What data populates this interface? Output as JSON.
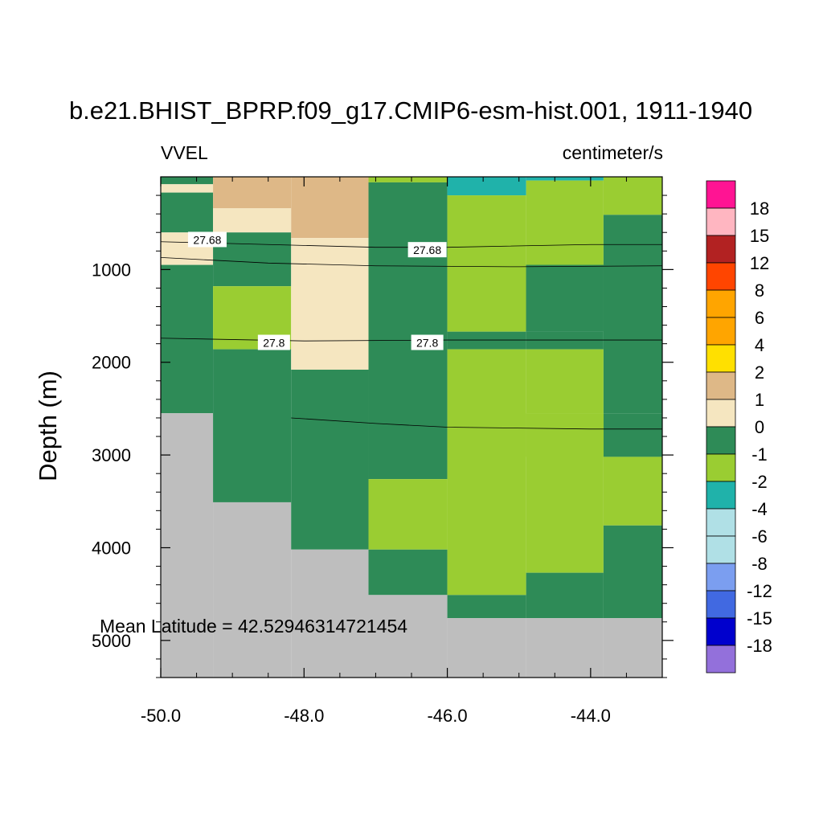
{
  "chart_data": {
    "type": "heatmap",
    "title": "b.e21.BHIST_BPRP.f09_g17.CMIP6-esm-hist.001, 1911-1940",
    "left_subtitle": "VVEL",
    "right_subtitle": "centimeter/s",
    "ylabel": "Depth (m)",
    "xlim": [
      -50.0,
      -43.0
    ],
    "ylim": [
      5400,
      0
    ],
    "xticks": [
      -50.0,
      -48.0,
      -46.0,
      -44.0
    ],
    "xtick_labels": [
      "-50.0",
      "-48.0",
      "-46.0",
      "-44.0"
    ],
    "yticks": [
      1000,
      2000,
      3000,
      4000,
      5000
    ],
    "ytick_labels": [
      "1000",
      "2000",
      "3000",
      "4000",
      "5000"
    ],
    "annotation": "Mean Latitude = 42.52946314721454",
    "colorbar": {
      "labels": [
        "18",
        "15",
        "12",
        "8",
        "6",
        "4",
        "2",
        "1",
        "0",
        "-1",
        "-2",
        "-4",
        "-6",
        "-8",
        "-12",
        "-15",
        "-18"
      ],
      "colors": [
        "#FF1493",
        "#FFB6C1",
        "#B22222",
        "#FF4500",
        "#FFA500",
        "#FFA500",
        "#FFE000",
        "#DEB887",
        "#F5E6C0",
        "#2E8B57",
        "#9ACD32",
        "#20B2AA",
        "#B0E0E6",
        "#B0E0E6",
        "#7B9EF0",
        "#4169E1",
        "#0000CD",
        "#9370DB"
      ]
    },
    "land_color": "#BEBEBE",
    "columns_lon": [
      [
        -50.0,
        -49.27
      ],
      [
        -49.27,
        -48.18
      ],
      [
        -48.18,
        -47.1
      ],
      [
        -47.1,
        -46.0
      ],
      [
        -46.0,
        -44.9
      ],
      [
        -44.9,
        -43.82
      ],
      [
        -43.82,
        -43.0
      ]
    ],
    "cells": [
      {
        "col": 0,
        "d0": 0,
        "d1": 80,
        "cat": "0"
      },
      {
        "col": 0,
        "d0": 80,
        "d1": 170,
        "cat": "1"
      },
      {
        "col": 0,
        "d0": 170,
        "d1": 600,
        "cat": "0"
      },
      {
        "col": 0,
        "d0": 600,
        "d1": 950,
        "cat": "1"
      },
      {
        "col": 0,
        "d0": 950,
        "d1": 2550,
        "cat": "0"
      },
      {
        "col": 0,
        "d0": 2550,
        "d1": 5400,
        "cat": "land"
      },
      {
        "col": 1,
        "d0": 0,
        "d1": 340,
        "cat": "2"
      },
      {
        "col": 1,
        "d0": 340,
        "d1": 600,
        "cat": "1"
      },
      {
        "col": 1,
        "d0": 600,
        "d1": 1180,
        "cat": "0"
      },
      {
        "col": 1,
        "d0": 1180,
        "d1": 1860,
        "cat": "-1"
      },
      {
        "col": 1,
        "d0": 1860,
        "d1": 3510,
        "cat": "0"
      },
      {
        "col": 1,
        "d0": 3510,
        "d1": 5400,
        "cat": "land"
      },
      {
        "col": 2,
        "d0": 0,
        "d1": 660,
        "cat": "2"
      },
      {
        "col": 2,
        "d0": 660,
        "d1": 2080,
        "cat": "1"
      },
      {
        "col": 2,
        "d0": 2080,
        "d1": 4020,
        "cat": "0"
      },
      {
        "col": 2,
        "d0": 4020,
        "d1": 5400,
        "cat": "land"
      },
      {
        "col": 3,
        "d0": 0,
        "d1": 60,
        "cat": "-1"
      },
      {
        "col": 3,
        "d0": 60,
        "d1": 3260,
        "cat": "0"
      },
      {
        "col": 3,
        "d0": 3260,
        "d1": 4020,
        "cat": "-1"
      },
      {
        "col": 3,
        "d0": 4020,
        "d1": 4510,
        "cat": "0"
      },
      {
        "col": 3,
        "d0": 4510,
        "d1": 5400,
        "cat": "land"
      },
      {
        "col": 4,
        "d0": 0,
        "d1": 200,
        "cat": "-2"
      },
      {
        "col": 4,
        "d0": 200,
        "d1": 1670,
        "cat": "-1"
      },
      {
        "col": 4,
        "d0": 1670,
        "d1": 1860,
        "cat": "0"
      },
      {
        "col": 4,
        "d0": 1860,
        "d1": 4510,
        "cat": "-1"
      },
      {
        "col": 4,
        "d0": 4510,
        "d1": 4760,
        "cat": "0"
      },
      {
        "col": 4,
        "d0": 4760,
        "d1": 5400,
        "cat": "land"
      },
      {
        "col": 5,
        "d0": 0,
        "d1": 40,
        "cat": "-2"
      },
      {
        "col": 5,
        "d0": 40,
        "d1": 950,
        "cat": "-1"
      },
      {
        "col": 5,
        "d0": 950,
        "d1": 1670,
        "cat": "0"
      },
      {
        "col": 5,
        "d0": 1670,
        "d1": 1860,
        "cat": "0"
      },
      {
        "col": 5,
        "d0": 1860,
        "d1": 2550,
        "cat": "-1"
      },
      {
        "col": 5,
        "d0": 2550,
        "d1": 4270,
        "cat": "-1"
      },
      {
        "col": 5,
        "d0": 4270,
        "d1": 4760,
        "cat": "0"
      },
      {
        "col": 5,
        "d0": 4760,
        "d1": 5400,
        "cat": "land"
      },
      {
        "col": 6,
        "d0": 0,
        "d1": 410,
        "cat": "-1"
      },
      {
        "col": 6,
        "d0": 410,
        "d1": 2550,
        "cat": "0"
      },
      {
        "col": 6,
        "d0": 2550,
        "d1": 3020,
        "cat": "0"
      },
      {
        "col": 6,
        "d0": 3020,
        "d1": 3760,
        "cat": "-1"
      },
      {
        "col": 6,
        "d0": 3760,
        "d1": 4760,
        "cat": "0"
      },
      {
        "col": 6,
        "d0": 4760,
        "d1": 5400,
        "cat": "land"
      }
    ],
    "extra_cells": [
      {
        "lon0": -44.9,
        "lon1": -43.82,
        "d0": 2550,
        "d1": 3020,
        "cat": "-1"
      },
      {
        "lon0": -44.9,
        "lon1": -43.82,
        "d0": 950,
        "d1": 1670,
        "cat": "0"
      }
    ],
    "contours": [
      {
        "label": "27.68",
        "points": [
          [
            -50.0,
            700
          ],
          [
            -48.5,
            730
          ],
          [
            -47.0,
            760
          ],
          [
            -46.0,
            760
          ],
          [
            -44.0,
            730
          ],
          [
            -43.0,
            730
          ]
        ],
        "label_at": [
          [
            -49.35,
            680
          ],
          [
            -46.28,
            790
          ]
        ]
      },
      {
        "label": "",
        "points": [
          [
            -50.0,
            870
          ],
          [
            -48.5,
            930
          ],
          [
            -47.0,
            960
          ],
          [
            -45.0,
            970
          ],
          [
            -43.0,
            960
          ]
        ],
        "label_at": []
      },
      {
        "label": "27.8",
        "points": [
          [
            -50.0,
            1740
          ],
          [
            -48.0,
            1770
          ],
          [
            -46.0,
            1760
          ],
          [
            -44.0,
            1760
          ],
          [
            -43.0,
            1760
          ]
        ],
        "label_at": [
          [
            -48.42,
            1790
          ],
          [
            -46.28,
            1790
          ]
        ]
      },
      {
        "label": "",
        "points": [
          [
            -48.18,
            2600
          ],
          [
            -47.0,
            2660
          ],
          [
            -46.0,
            2700
          ],
          [
            -44.0,
            2720
          ],
          [
            -43.0,
            2720
          ]
        ],
        "label_at": []
      }
    ]
  }
}
